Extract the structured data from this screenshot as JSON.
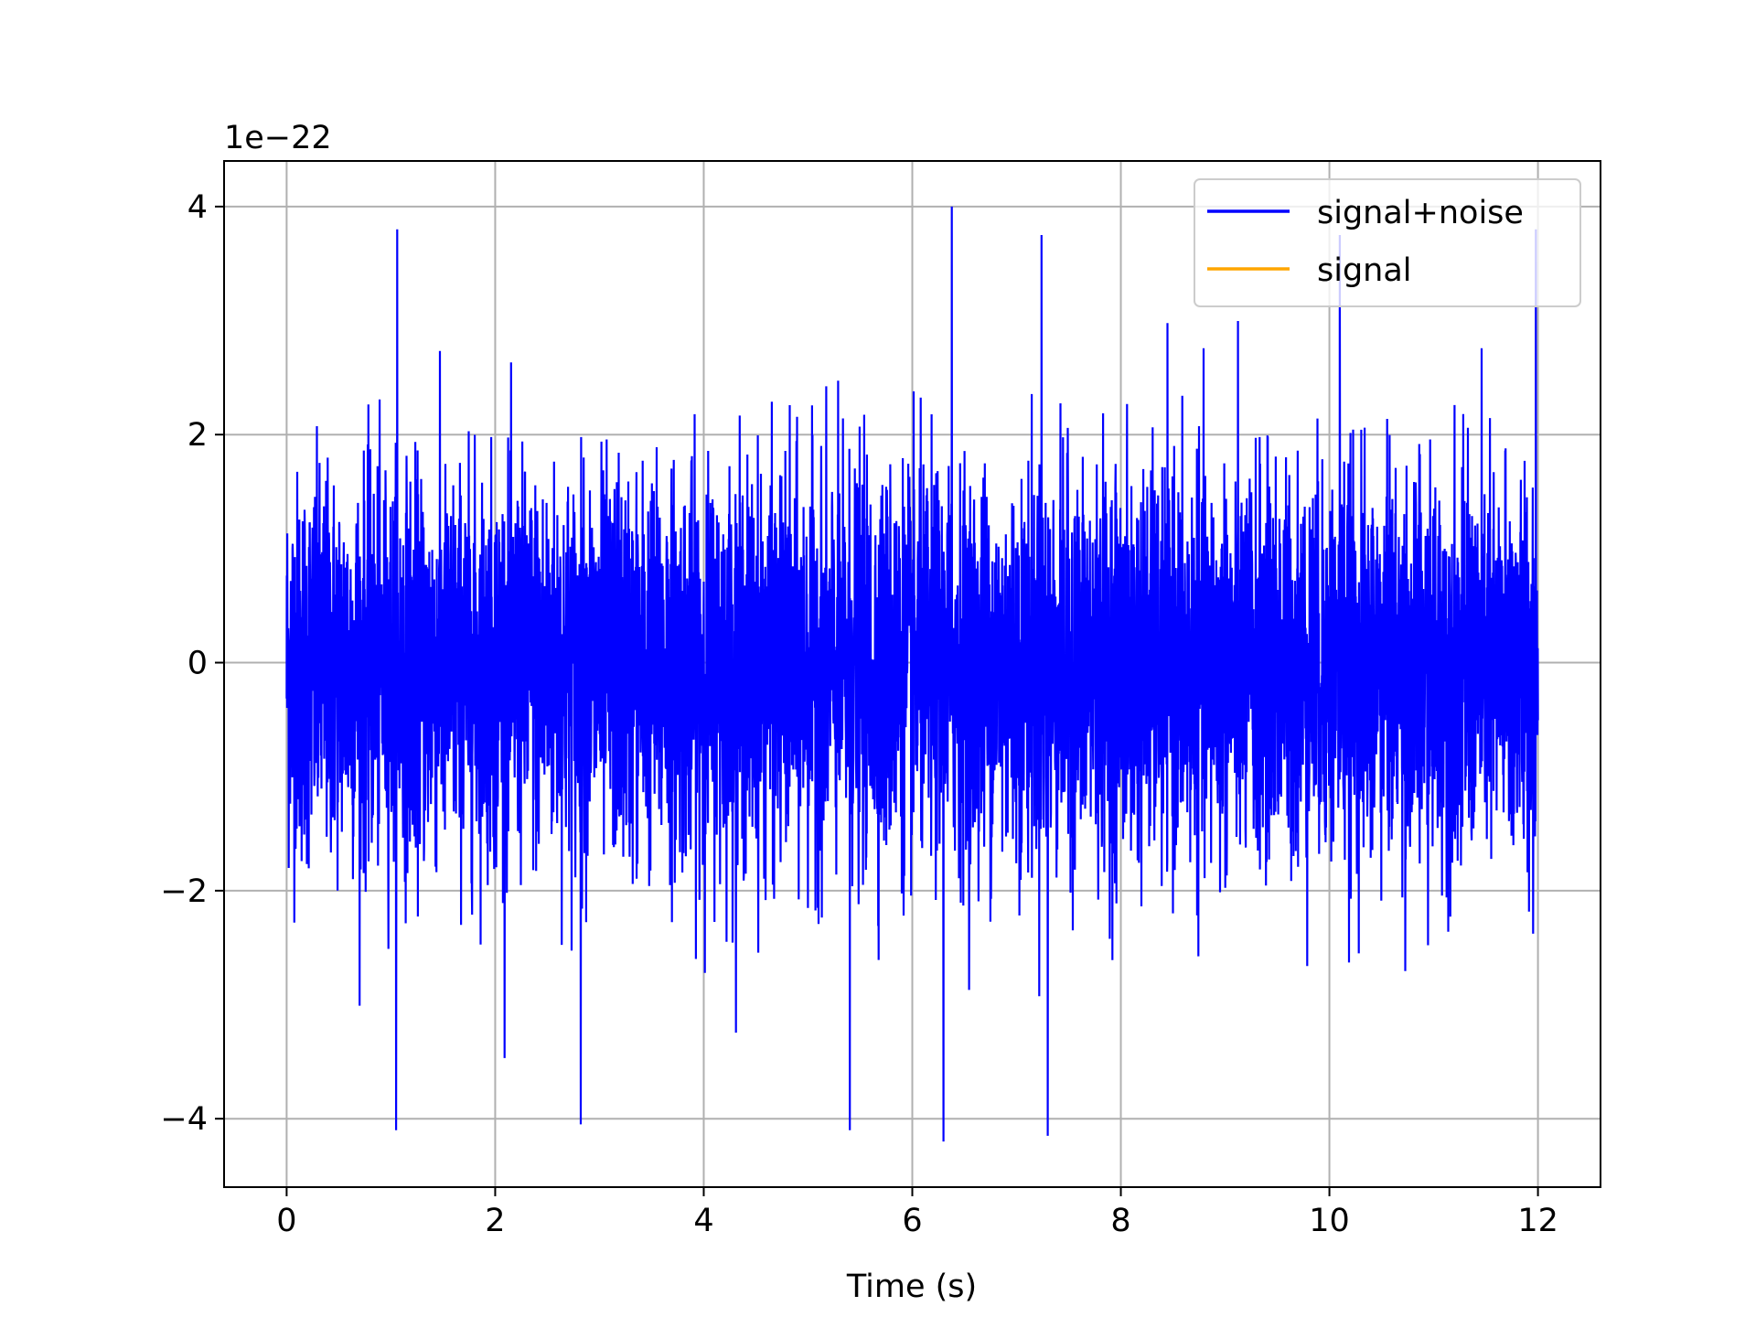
{
  "chart_data": {
    "type": "line",
    "title": "",
    "xlabel": "Time (s)",
    "ylabel": "",
    "y_offset_label": "1e−22",
    "xlim": [
      -0.6,
      12.6
    ],
    "ylim": [
      -4.6,
      4.4
    ],
    "xticks": [
      0,
      2,
      4,
      6,
      8,
      10,
      12
    ],
    "xtick_labels": [
      "0",
      "2",
      "4",
      "6",
      "8",
      "10",
      "12"
    ],
    "yticks": [
      -4,
      -2,
      0,
      2,
      4
    ],
    "ytick_labels": [
      "−4",
      "−2",
      "0",
      "2",
      "4"
    ],
    "grid": true,
    "legend_position": "top-right",
    "series": [
      {
        "name": "signal+noise",
        "color": "#0000ff",
        "x_range": [
          0,
          12
        ],
        "approx_std": 0.85,
        "envelope_max": 4.0,
        "envelope_min": -4.2,
        "peaks": [
          {
            "x": 1.06,
            "y": 3.8
          },
          {
            "x": 6.38,
            "y": 4.0
          },
          {
            "x": 7.24,
            "y": 3.75
          },
          {
            "x": 10.1,
            "y": 3.75
          },
          {
            "x": 11.98,
            "y": 3.8
          },
          {
            "x": 1.05,
            "y": -4.1
          },
          {
            "x": 5.4,
            "y": -4.1
          },
          {
            "x": 6.3,
            "y": -4.2
          },
          {
            "x": 7.3,
            "y": -4.15
          },
          {
            "x": 2.82,
            "y": -4.05
          }
        ]
      },
      {
        "name": "signal",
        "color": "#ffa500",
        "x_range": [
          0,
          12
        ],
        "y_values_approx": 0
      }
    ]
  }
}
